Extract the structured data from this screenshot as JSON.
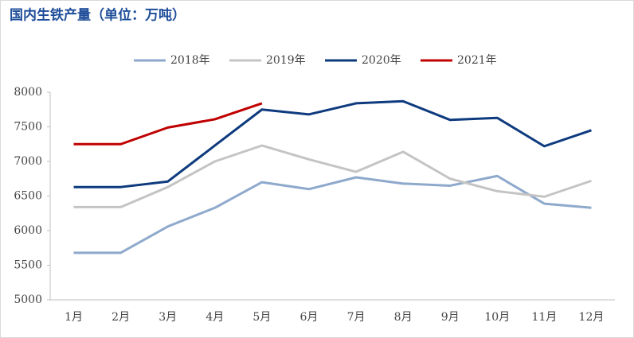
{
  "chart_data": {
    "type": "line",
    "title": "国内生铁产量（单位：万吨）",
    "categories": [
      "1月",
      "2月",
      "3月",
      "4月",
      "5月",
      "6月",
      "7月",
      "8月",
      "9月",
      "10月",
      "11月",
      "12月"
    ],
    "series": [
      {
        "name": "2018年",
        "color": "#8ea9cc",
        "values": [
          5680,
          5680,
          6060,
          6330,
          6700,
          6600,
          6770,
          6680,
          6650,
          6790,
          6390,
          6330
        ]
      },
      {
        "name": "2019年",
        "color": "#c4c4c4",
        "values": [
          6340,
          6340,
          6630,
          7000,
          7230,
          7030,
          6850,
          7140,
          6750,
          6570,
          6490,
          6720
        ]
      },
      {
        "name": "2020年",
        "color": "#0e3a7e",
        "values": [
          6630,
          6630,
          6710,
          7230,
          7750,
          7680,
          7840,
          7870,
          7600,
          7630,
          7220,
          7450
        ]
      },
      {
        "name": "2021年",
        "color": "#c00000",
        "values": [
          7250,
          7250,
          7490,
          7610,
          7840,
          null,
          null,
          null,
          null,
          null,
          null,
          null
        ]
      }
    ],
    "ylim": [
      5000,
      8000
    ],
    "yticks": [
      5000,
      5500,
      6000,
      6500,
      7000,
      7500,
      8000
    ],
    "grid": false,
    "legend": "top"
  }
}
